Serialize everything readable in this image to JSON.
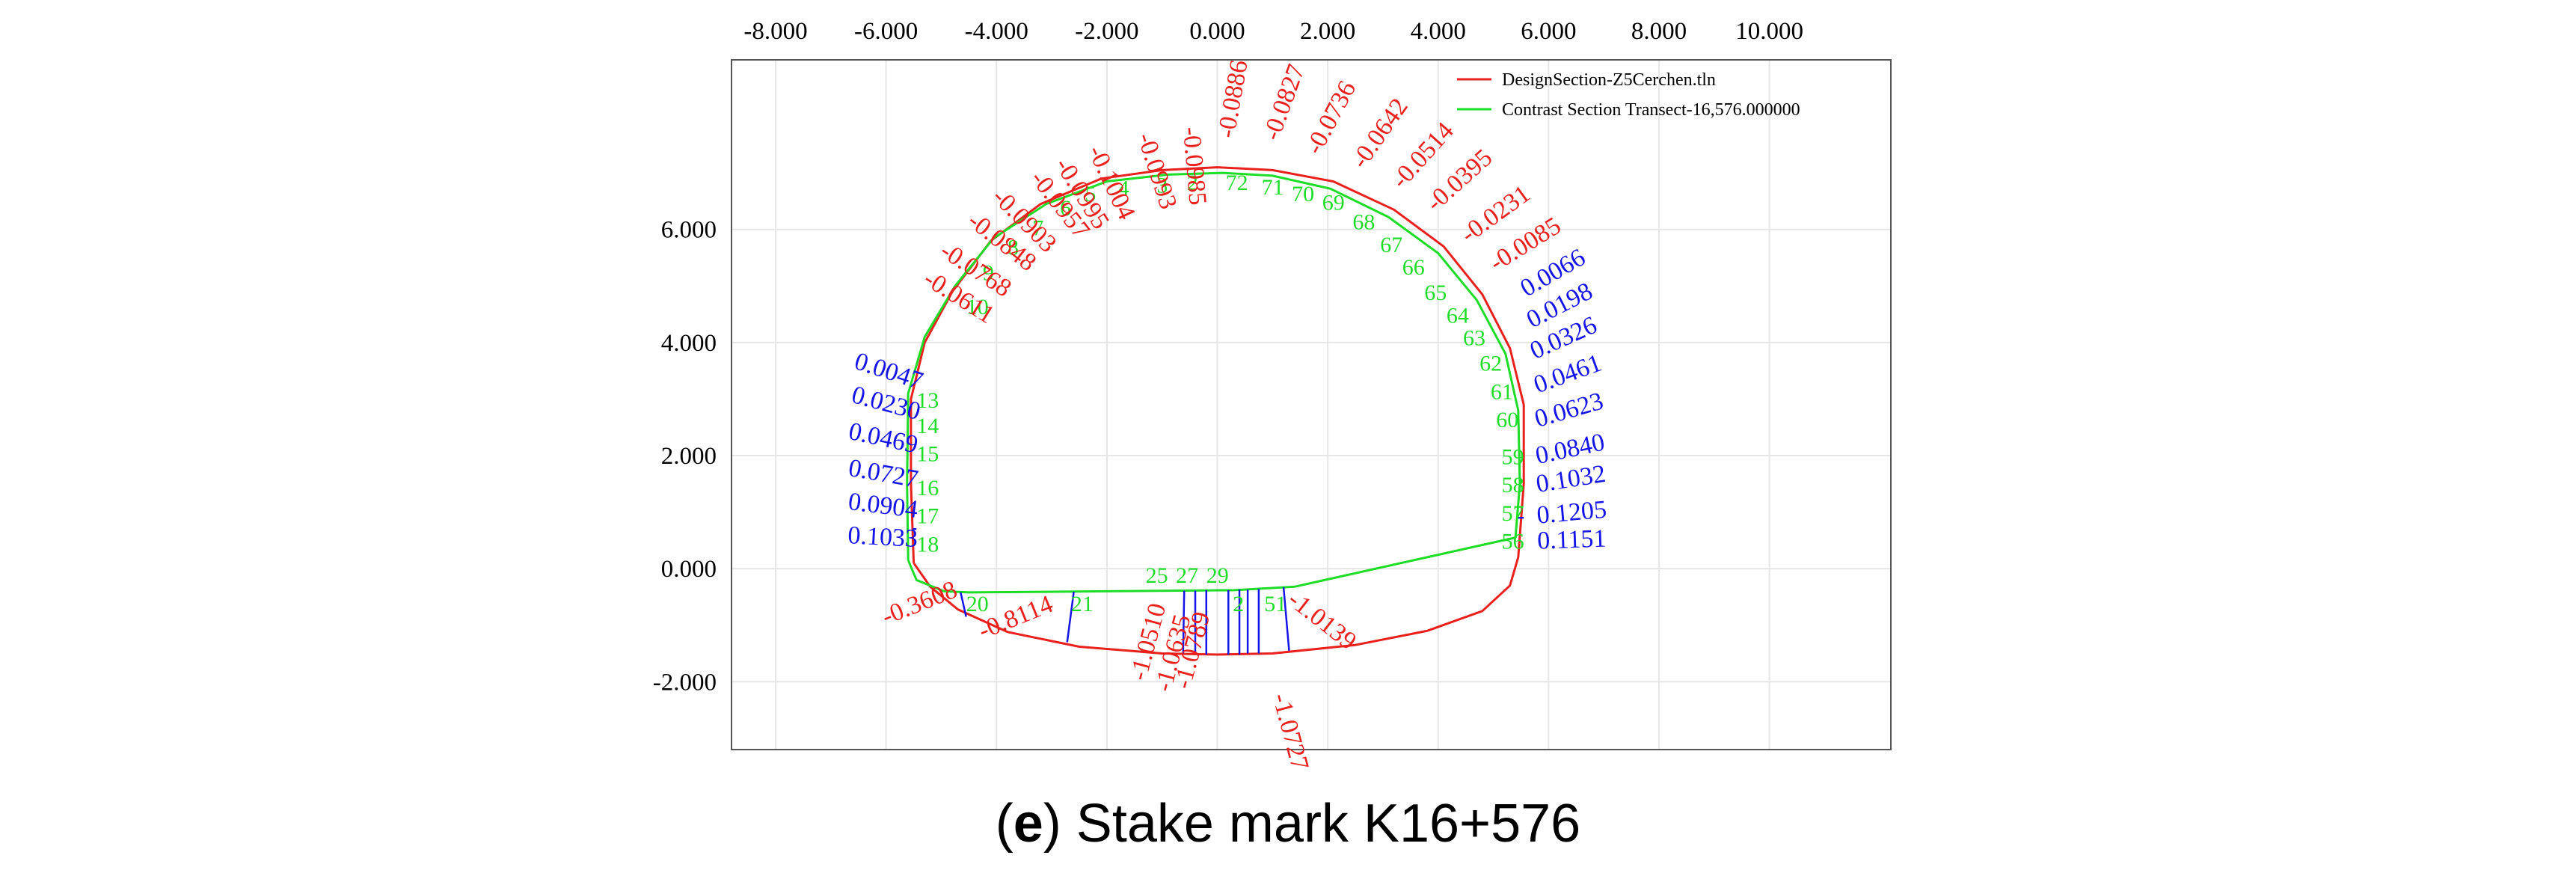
{
  "chart_data": {
    "type": "scatter",
    "title": "",
    "xlabel": "",
    "ylabel": "",
    "xlim": [
      -8.8,
      12.2
    ],
    "ylim": [
      -3.2,
      9.0
    ],
    "x_ticks": [
      "-8.000",
      "-6.000",
      "-4.000",
      "-2.000",
      "0.000",
      "2.000",
      "4.000",
      "6.000",
      "8.000",
      "10.000"
    ],
    "x_tick_values": [
      -8,
      -6,
      -4,
      -2,
      0,
      2,
      4,
      6,
      8,
      10
    ],
    "y_ticks": [
      "6.000",
      "4.000",
      "2.000",
      "0.000",
      "-2.000"
    ],
    "y_tick_values": [
      6,
      4,
      2,
      0,
      -2
    ],
    "grid": true,
    "colors": {
      "design": "#e8211c",
      "contrast": "#1edc28",
      "positive": "#1414e6",
      "negative": "#e8211c",
      "frame": "#555555",
      "grid": "#e6e6e6"
    },
    "legend_position": "top-right",
    "series": [
      {
        "name": "DesignSection-Z5Cerchen.tln",
        "color": "#e8211c",
        "points": [
          [
            -5.5,
            0.1
          ],
          [
            -5.55,
            1.5
          ],
          [
            -5.55,
            3.0
          ],
          [
            -5.3,
            4.0
          ],
          [
            -4.8,
            4.9
          ],
          [
            -4.1,
            5.8
          ],
          [
            -3.2,
            6.45
          ],
          [
            -2.1,
            6.9
          ],
          [
            -1.0,
            7.05
          ],
          [
            0.0,
            7.1
          ],
          [
            1.0,
            7.05
          ],
          [
            2.1,
            6.85
          ],
          [
            3.2,
            6.35
          ],
          [
            4.1,
            5.7
          ],
          [
            4.8,
            4.85
          ],
          [
            5.3,
            3.9
          ],
          [
            5.55,
            2.9
          ],
          [
            5.55,
            1.5
          ],
          [
            5.45,
            0.2
          ],
          [
            5.3,
            -0.3
          ],
          [
            4.8,
            -0.75
          ],
          [
            3.8,
            -1.1
          ],
          [
            2.5,
            -1.35
          ],
          [
            1.0,
            -1.5
          ],
          [
            0.0,
            -1.52
          ],
          [
            -1.0,
            -1.5
          ],
          [
            -2.5,
            -1.38
          ],
          [
            -3.8,
            -1.12
          ],
          [
            -4.7,
            -0.72
          ],
          [
            -5.2,
            -0.32
          ],
          [
            -5.5,
            0.1
          ]
        ]
      },
      {
        "name": "Contrast Section Transect-16,576.000000",
        "color": "#1edc28",
        "points": [
          [
            -5.6,
            0.15
          ],
          [
            -5.62,
            1.5
          ],
          [
            -5.6,
            3.1
          ],
          [
            -5.3,
            4.1
          ],
          [
            -4.75,
            5.0
          ],
          [
            -4.05,
            5.85
          ],
          [
            -3.1,
            6.45
          ],
          [
            -2.0,
            6.85
          ],
          [
            -0.9,
            6.97
          ],
          [
            0.1,
            7.0
          ],
          [
            1.0,
            6.95
          ],
          [
            2.05,
            6.72
          ],
          [
            3.1,
            6.22
          ],
          [
            4.0,
            5.58
          ],
          [
            4.7,
            4.75
          ],
          [
            5.22,
            3.8
          ],
          [
            5.45,
            2.8
          ],
          [
            5.48,
            1.5
          ],
          [
            5.4,
            0.55
          ],
          [
            1.4,
            -0.32
          ],
          [
            0.3,
            -0.38
          ],
          [
            -2.0,
            -0.4
          ],
          [
            -4.5,
            -0.42
          ],
          [
            -4.95,
            -0.4
          ],
          [
            -5.45,
            -0.2
          ],
          [
            -5.6,
            0.15
          ]
        ]
      }
    ],
    "deviation_labels": [
      {
        "label": "-0.0611",
        "x": -5.35,
        "y": 5.05,
        "rot": 32,
        "color": "#e8211c"
      },
      {
        "label": "-0.0768",
        "x": -5.05,
        "y": 5.55,
        "rot": 33,
        "color": "#e8211c"
      },
      {
        "label": "-0.0848",
        "x": -4.55,
        "y": 6.1,
        "rot": 38,
        "color": "#e8211c"
      },
      {
        "label": "-0.0903",
        "x": -4.1,
        "y": 6.55,
        "rot": 45,
        "color": "#e8211c"
      },
      {
        "label": "-0.0957",
        "x": -3.4,
        "y": 6.9,
        "rot": 52,
        "color": "#e8211c"
      },
      {
        "label": "-0.0995",
        "x": -2.95,
        "y": 7.15,
        "rot": 58,
        "color": "#e8211c"
      },
      {
        "label": "-0.1004",
        "x": -2.35,
        "y": 7.4,
        "rot": 65,
        "color": "#e8211c"
      },
      {
        "label": "-0.0993",
        "x": -1.45,
        "y": 7.65,
        "rot": 72,
        "color": "#e8211c"
      },
      {
        "label": "-0.0985",
        "x": -0.62,
        "y": 7.8,
        "rot": 85,
        "color": "#e8211c"
      },
      {
        "label": "-0.0886",
        "x": 0.3,
        "y": 7.6,
        "rot": -80,
        "color": "#e8211c"
      },
      {
        "label": "-0.0827",
        "x": 1.1,
        "y": 7.55,
        "rot": -70,
        "color": "#e8211c"
      },
      {
        "label": "-0.0736",
        "x": 1.85,
        "y": 7.3,
        "rot": -62,
        "color": "#e8211c"
      },
      {
        "label": "-0.0642",
        "x": 2.65,
        "y": 7.05,
        "rot": -55,
        "color": "#e8211c"
      },
      {
        "label": "-0.0514",
        "x": 3.35,
        "y": 6.7,
        "rot": -48,
        "color": "#e8211c"
      },
      {
        "label": "-0.0395",
        "x": 3.95,
        "y": 6.3,
        "rot": -42,
        "color": "#e8211c"
      },
      {
        "label": "-0.0231",
        "x": 4.55,
        "y": 5.75,
        "rot": -36,
        "color": "#e8211c"
      },
      {
        "label": "-0.0085",
        "x": 5.05,
        "y": 5.25,
        "rot": -32,
        "color": "#e8211c"
      },
      {
        "label": "0.0066",
        "x": 5.6,
        "y": 4.8,
        "rot": -30,
        "color": "#1414e6"
      },
      {
        "label": "0.0198",
        "x": 5.7,
        "y": 4.25,
        "rot": -27,
        "color": "#1414e6"
      },
      {
        "label": "0.0326",
        "x": 5.75,
        "y": 3.7,
        "rot": -24,
        "color": "#1414e6"
      },
      {
        "label": "0.0461",
        "x": 5.8,
        "y": 3.1,
        "rot": -20,
        "color": "#1414e6"
      },
      {
        "label": "0.0623",
        "x": 5.8,
        "y": 2.5,
        "rot": -16,
        "color": "#1414e6"
      },
      {
        "label": "0.0840",
        "x": 5.8,
        "y": 1.85,
        "rot": -12,
        "color": "#1414e6"
      },
      {
        "label": "0.1032",
        "x": 5.8,
        "y": 1.35,
        "rot": -9,
        "color": "#1414e6"
      },
      {
        "label": "0.1205",
        "x": 5.8,
        "y": 0.8,
        "rot": -5,
        "color": "#1414e6"
      },
      {
        "label": "0.1151",
        "x": 5.8,
        "y": 0.35,
        "rot": -2,
        "color": "#1414e6"
      },
      {
        "label": "0.0047",
        "x": -6.6,
        "y": 3.55,
        "rot": 18,
        "color": "#1414e6"
      },
      {
        "label": "0.0230",
        "x": -6.65,
        "y": 2.95,
        "rot": 15,
        "color": "#1414e6"
      },
      {
        "label": "0.0469",
        "x": -6.7,
        "y": 2.3,
        "rot": 12,
        "color": "#1414e6"
      },
      {
        "label": "0.0727",
        "x": -6.7,
        "y": 1.65,
        "rot": 10,
        "color": "#1414e6"
      },
      {
        "label": "0.0904",
        "x": -6.7,
        "y": 1.05,
        "rot": 7,
        "color": "#1414e6"
      },
      {
        "label": "0.1033",
        "x": -6.7,
        "y": 0.45,
        "rot": 3,
        "color": "#1414e6"
      },
      {
        "label": "-0.3608",
        "x": -6.0,
        "y": -1.0,
        "rot": -22,
        "color": "#e8211c"
      },
      {
        "label": "-0.8114",
        "x": -4.25,
        "y": -1.25,
        "rot": -22,
        "color": "#e8211c"
      },
      {
        "label": "-1.0510",
        "x": -1.3,
        "y": -2.0,
        "rot": -75,
        "color": "#e8211c"
      },
      {
        "label": "-1.0635",
        "x": -0.85,
        "y": -2.2,
        "rot": -75,
        "color": "#e8211c"
      },
      {
        "label": "-1.0789",
        "x": -0.5,
        "y": -2.15,
        "rot": -75,
        "color": "#e8211c"
      },
      {
        "label": "-1.0727",
        "x": 1.0,
        "y": -2.25,
        "rot": 75,
        "color": "#e8211c"
      },
      {
        "label": "-1.0139",
        "x": 1.25,
        "y": -0.6,
        "rot": 38,
        "color": "#e8211c"
      }
    ],
    "point_labels": [
      {
        "label": "2",
        "x": -0.55,
        "y": 6.7
      },
      {
        "label": "3",
        "x": -1.1,
        "y": 6.65
      },
      {
        "label": "4",
        "x": -1.8,
        "y": 6.6
      },
      {
        "label": "5",
        "x": -2.4,
        "y": 6.5
      },
      {
        "label": "6",
        "x": -2.85,
        "y": 6.25
      },
      {
        "label": "7",
        "x": -3.35,
        "y": 5.9
      },
      {
        "label": "8",
        "x": -3.8,
        "y": 5.55
      },
      {
        "label": "9",
        "x": -4.25,
        "y": 5.1
      },
      {
        "label": "10",
        "x": -4.55,
        "y": 4.5
      },
      {
        "label": "13",
        "x": -5.45,
        "y": 2.85
      },
      {
        "label": "14",
        "x": -5.45,
        "y": 2.4
      },
      {
        "label": "15",
        "x": -5.45,
        "y": 1.9
      },
      {
        "label": "16",
        "x": -5.45,
        "y": 1.3
      },
      {
        "label": "17",
        "x": -5.45,
        "y": 0.8
      },
      {
        "label": "18",
        "x": -5.45,
        "y": 0.3
      },
      {
        "label": "20",
        "x": -4.55,
        "y": -0.75
      },
      {
        "label": "21",
        "x": -2.65,
        "y": -0.75
      },
      {
        "label": "25",
        "x": -1.3,
        "y": -0.25
      },
      {
        "label": "27",
        "x": -0.75,
        "y": -0.25
      },
      {
        "label": "29",
        "x": -0.2,
        "y": -0.25
      },
      {
        "label": "72",
        "x": 0.15,
        "y": 6.7
      },
      {
        "label": "71",
        "x": 0.8,
        "y": 6.62
      },
      {
        "label": "70",
        "x": 1.35,
        "y": 6.5
      },
      {
        "label": "69",
        "x": 1.9,
        "y": 6.35
      },
      {
        "label": "68",
        "x": 2.45,
        "y": 6.0
      },
      {
        "label": "67",
        "x": 2.95,
        "y": 5.6
      },
      {
        "label": "66",
        "x": 3.35,
        "y": 5.2
      },
      {
        "label": "65",
        "x": 3.75,
        "y": 4.75
      },
      {
        "label": "64",
        "x": 4.15,
        "y": 4.35
      },
      {
        "label": "63",
        "x": 4.45,
        "y": 3.95
      },
      {
        "label": "62",
        "x": 4.75,
        "y": 3.5
      },
      {
        "label": "61",
        "x": 4.95,
        "y": 3.0
      },
      {
        "label": "60",
        "x": 5.05,
        "y": 2.5
      },
      {
        "label": "59",
        "x": 5.15,
        "y": 1.85
      },
      {
        "label": "58",
        "x": 5.15,
        "y": 1.35
      },
      {
        "label": "57",
        "x": 5.15,
        "y": 0.85
      },
      {
        "label": "56",
        "x": 5.15,
        "y": 0.35
      },
      {
        "label": "2",
        "x": 0.28,
        "y": -0.75
      },
      {
        "label": "51",
        "x": 0.85,
        "y": -0.75
      }
    ],
    "deviation_lines": [
      [
        -4.65,
        -0.42,
        -4.55,
        -0.85
      ],
      [
        -2.6,
        -0.41,
        -2.72,
        -1.3
      ],
      [
        -0.6,
        -0.39,
        -0.62,
        -1.5
      ],
      [
        -0.4,
        -0.39,
        -0.4,
        -1.5
      ],
      [
        -0.2,
        -0.38,
        -0.2,
        -1.52
      ],
      [
        0.2,
        -0.38,
        0.2,
        -1.52
      ],
      [
        0.4,
        -0.37,
        0.4,
        -1.52
      ],
      [
        0.55,
        -0.37,
        0.55,
        -1.5
      ],
      [
        0.75,
        -0.36,
        0.75,
        -1.5
      ],
      [
        1.2,
        -0.33,
        1.3,
        -1.45
      ],
      [
        -5.52,
        0.7,
        -5.45,
        0.7
      ],
      [
        5.45,
        0.9,
        5.55,
        0.9
      ]
    ],
    "caption_letter": "e",
    "caption_text": " Stake mark K16+576"
  }
}
